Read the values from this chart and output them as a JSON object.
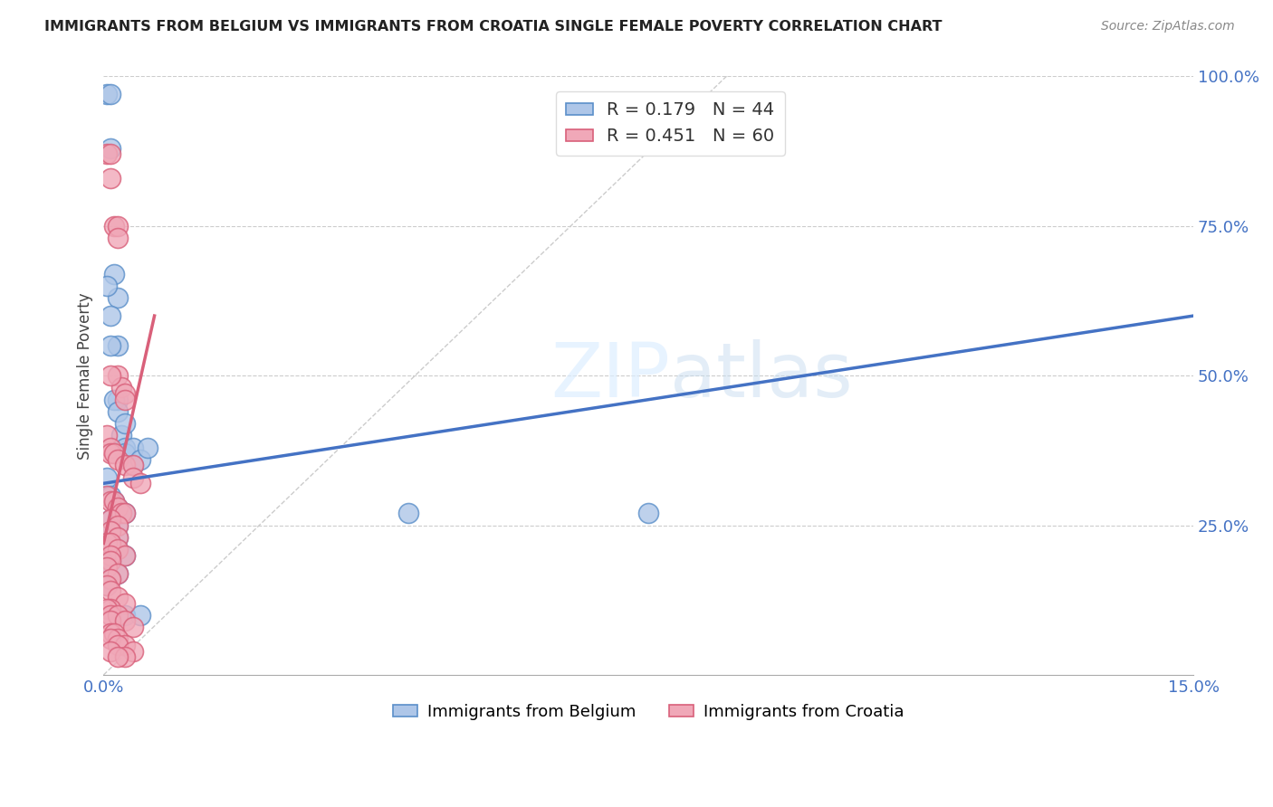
{
  "title": "IMMIGRANTS FROM BELGIUM VS IMMIGRANTS FROM CROATIA SINGLE FEMALE POVERTY CORRELATION CHART",
  "source": "Source: ZipAtlas.com",
  "ylabel": "Single Female Poverty",
  "xlim": [
    0.0,
    0.15
  ],
  "ylim": [
    0.0,
    1.0
  ],
  "belgium_color": "#aec6e8",
  "croatia_color": "#f0a8b8",
  "belgium_edge": "#5b8fc9",
  "croatia_edge": "#d9607a",
  "trendline_belgium_color": "#4472c4",
  "trendline_croatia_color": "#d9607a",
  "R_belgium": 0.179,
  "N_belgium": 44,
  "R_croatia": 0.451,
  "N_croatia": 60,
  "belgium_x": [
    0.0005,
    0.001,
    0.001,
    0.0015,
    0.002,
    0.002,
    0.002,
    0.0025,
    0.003,
    0.003,
    0.0005,
    0.001,
    0.001,
    0.0015,
    0.002,
    0.003,
    0.004,
    0.004,
    0.005,
    0.006,
    0.0005,
    0.001,
    0.0015,
    0.002,
    0.0025,
    0.003,
    0.001,
    0.002,
    0.001,
    0.002,
    0.0005,
    0.001,
    0.002,
    0.003,
    0.001,
    0.001,
    0.0005,
    0.002,
    0.001,
    0.0005,
    0.042,
    0.075,
    0.003,
    0.005
  ],
  "belgium_y": [
    0.97,
    0.97,
    0.88,
    0.67,
    0.63,
    0.55,
    0.46,
    0.4,
    0.38,
    0.37,
    0.65,
    0.6,
    0.55,
    0.46,
    0.44,
    0.42,
    0.38,
    0.35,
    0.36,
    0.38,
    0.33,
    0.3,
    0.29,
    0.28,
    0.27,
    0.27,
    0.26,
    0.25,
    0.24,
    0.23,
    0.22,
    0.22,
    0.21,
    0.2,
    0.2,
    0.19,
    0.18,
    0.17,
    0.16,
    0.15,
    0.27,
    0.27,
    0.1,
    0.1
  ],
  "croatia_x": [
    0.0005,
    0.001,
    0.001,
    0.0015,
    0.002,
    0.002,
    0.002,
    0.0025,
    0.003,
    0.003,
    0.0005,
    0.001,
    0.001,
    0.0015,
    0.002,
    0.003,
    0.004,
    0.004,
    0.005,
    0.001,
    0.0005,
    0.001,
    0.0015,
    0.002,
    0.0025,
    0.003,
    0.001,
    0.002,
    0.001,
    0.002,
    0.0005,
    0.001,
    0.002,
    0.003,
    0.001,
    0.001,
    0.0005,
    0.002,
    0.001,
    0.0005,
    0.001,
    0.002,
    0.003,
    0.001,
    0.0005,
    0.001,
    0.002,
    0.001,
    0.003,
    0.004,
    0.001,
    0.0015,
    0.002,
    0.001,
    0.003,
    0.002,
    0.001,
    0.004,
    0.003,
    0.002
  ],
  "croatia_y": [
    0.87,
    0.87,
    0.83,
    0.75,
    0.75,
    0.73,
    0.5,
    0.48,
    0.47,
    0.46,
    0.4,
    0.38,
    0.37,
    0.37,
    0.36,
    0.35,
    0.35,
    0.33,
    0.32,
    0.5,
    0.3,
    0.29,
    0.29,
    0.28,
    0.27,
    0.27,
    0.26,
    0.25,
    0.24,
    0.23,
    0.22,
    0.22,
    0.21,
    0.2,
    0.2,
    0.19,
    0.18,
    0.17,
    0.16,
    0.15,
    0.14,
    0.13,
    0.12,
    0.11,
    0.11,
    0.1,
    0.1,
    0.09,
    0.09,
    0.08,
    0.07,
    0.07,
    0.06,
    0.06,
    0.05,
    0.05,
    0.04,
    0.04,
    0.03,
    0.03
  ]
}
